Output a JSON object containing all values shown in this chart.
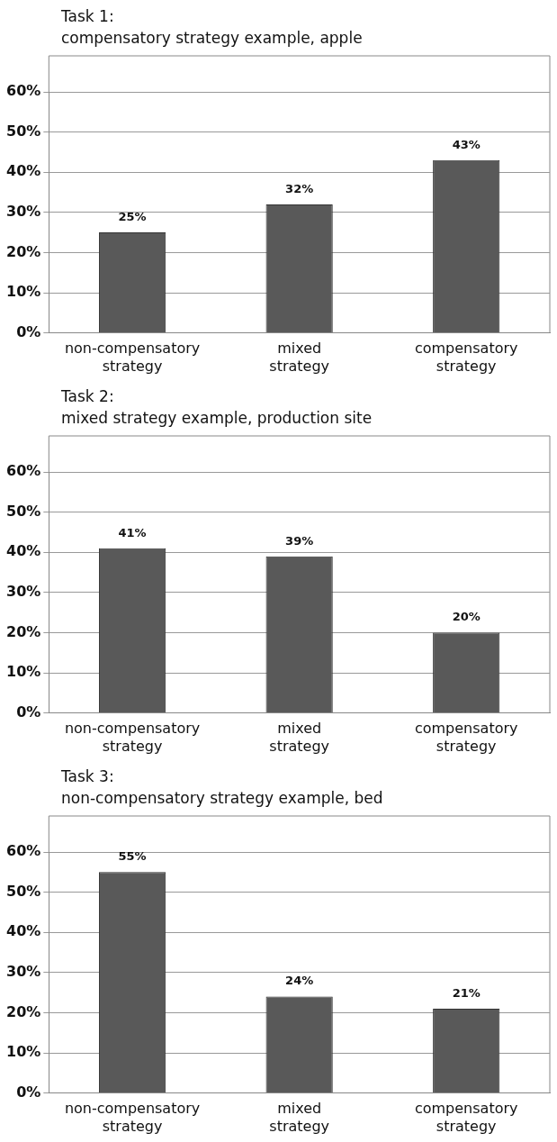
{
  "chart_data": [
    {
      "type": "bar",
      "title": "Task 1:\ncompensatory strategy example, apple",
      "categories": [
        "non-compensatory strategy",
        "mixed strategy",
        "compensatory strategy"
      ],
      "values": [
        25,
        32,
        43
      ],
      "value_labels": [
        "25%",
        "32%",
        "43%"
      ],
      "color": "#595959",
      "ylim": [
        0,
        60
      ],
      "yticks": [
        {
          "value": 0,
          "label": "0%"
        },
        {
          "value": 10,
          "label": "10%"
        },
        {
          "value": 20,
          "label": "20%"
        },
        {
          "value": 30,
          "label": "30%"
        },
        {
          "value": 40,
          "label": "40%"
        },
        {
          "value": 50,
          "label": "50%"
        },
        {
          "value": 60,
          "label": "60%"
        }
      ],
      "grid": "y",
      "legend": false
    },
    {
      "type": "bar",
      "title": "Task 2:\nmixed strategy example, production site",
      "categories": [
        "non-compensatory strategy",
        "mixed strategy",
        "compensatory strategy"
      ],
      "values": [
        41,
        39,
        20
      ],
      "value_labels": [
        "41%",
        "39%",
        "20%"
      ],
      "color": "#595959",
      "ylim": [
        0,
        60
      ],
      "yticks": [
        {
          "value": 0,
          "label": "0%"
        },
        {
          "value": 10,
          "label": "10%"
        },
        {
          "value": 20,
          "label": "20%"
        },
        {
          "value": 30,
          "label": "30%"
        },
        {
          "value": 40,
          "label": "40%"
        },
        {
          "value": 50,
          "label": "50%"
        },
        {
          "value": 60,
          "label": "60%"
        }
      ],
      "grid": "y",
      "legend": false
    },
    {
      "type": "bar",
      "title": "Task 3:\nnon-compensatory strategy example, bed",
      "categories": [
        "non-compensatory strategy",
        "mixed strategy",
        "compensatory strategy"
      ],
      "values": [
        55,
        24,
        21
      ],
      "value_labels": [
        "55%",
        "24%",
        "21%"
      ],
      "color": "#595959",
      "ylim": [
        0,
        60
      ],
      "yticks": [
        {
          "value": 0,
          "label": "0%"
        },
        {
          "value": 10,
          "label": "10%"
        },
        {
          "value": 20,
          "label": "20%"
        },
        {
          "value": 30,
          "label": "30%"
        },
        {
          "value": 40,
          "label": "40%"
        },
        {
          "value": 50,
          "label": "50%"
        },
        {
          "value": 60,
          "label": "60%"
        }
      ],
      "grid": "y",
      "legend": false
    }
  ]
}
